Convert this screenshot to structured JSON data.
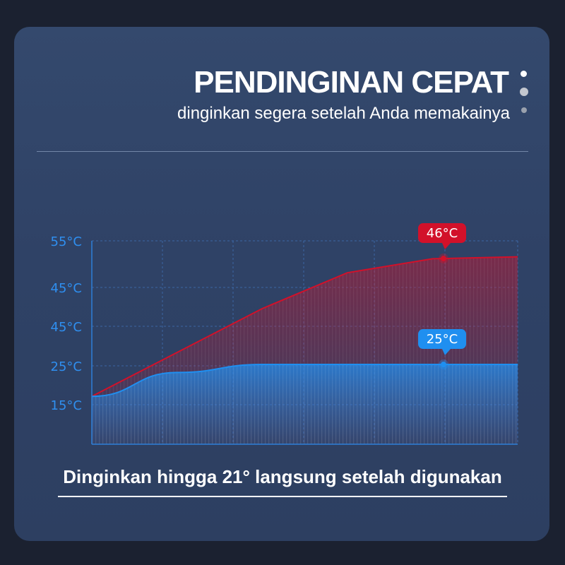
{
  "header": {
    "title": "PENDINGINAN CEPAT",
    "subtitle": "dinginkan segera setelah Anda memakainya"
  },
  "colors": {
    "hot": "#d2112a",
    "cool": "#1f8ff0",
    "background": "#2f4266"
  },
  "chart_data": {
    "type": "area",
    "y_tick_labels": [
      "55°C",
      "45°C",
      "45°C",
      "25°C",
      "15°C"
    ],
    "series": [
      {
        "name": "46°C",
        "color": "#d2112a",
        "values": [
          17,
          28,
          39,
          48,
          51.5,
          52
        ]
      },
      {
        "name": "25°C",
        "color": "#1f8ff0",
        "values": [
          17,
          23,
          25,
          25,
          25,
          25
        ]
      }
    ],
    "x": [
      0,
      1,
      2,
      3,
      4,
      5
    ],
    "ylim": [
      5,
      56
    ],
    "grid": true
  },
  "caption": "Dinginkan hingga 21° langsung setelah digunakan"
}
